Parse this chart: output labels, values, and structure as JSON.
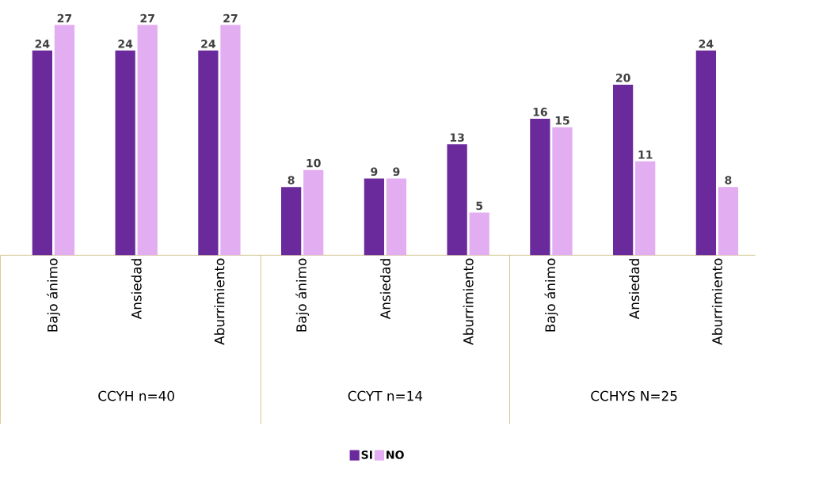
{
  "chart_data": {
    "type": "bar",
    "categories": [
      "Bajo ánimo",
      "Ansiedad",
      "Aburrimiento",
      "Bajo ánimo",
      "Ansiedad",
      "Aburrimiento",
      "Bajo ánimo",
      "Ansiedad",
      "Aburrimiento"
    ],
    "series": [
      {
        "name": "SI",
        "color": "#6b2a9c",
        "values": [
          24,
          24,
          24,
          8,
          9,
          13,
          16,
          20,
          24
        ]
      },
      {
        "name": "NO",
        "color": "#e3adf2",
        "values": [
          27,
          27,
          27,
          10,
          9,
          5,
          15,
          11,
          8
        ]
      }
    ],
    "annotations": [
      "CCYH n=40",
      "CCYT n=14",
      "CCHYS N=25"
    ],
    "data_labels": true,
    "legend": "bottom"
  }
}
